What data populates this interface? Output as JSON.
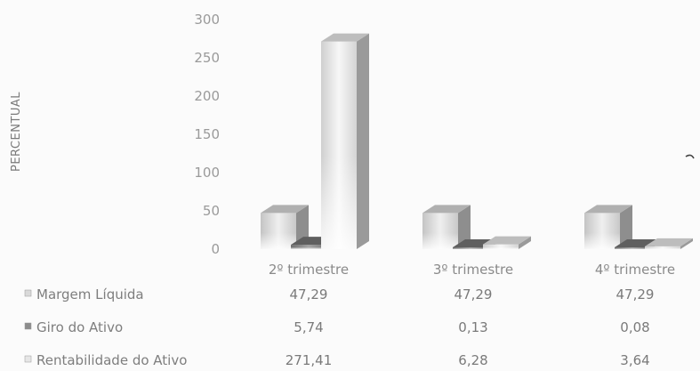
{
  "chart_data": {
    "type": "bar",
    "ylabel": "PERCENTUAL",
    "ylim": [
      0,
      300
    ],
    "yticks": [
      "300",
      "250",
      "200",
      "150",
      "100",
      "50",
      "0"
    ],
    "categories": [
      "2º trimestre",
      "3º trimestre",
      "4º trimestre"
    ],
    "series": [
      {
        "name": "Margem Líquida",
        "values": [
          47.29,
          47.29,
          47.29
        ],
        "labels": [
          "47,29",
          "47,29",
          "47,29"
        ],
        "color": "#d9d9d9"
      },
      {
        "name": "Giro do Ativo",
        "values": [
          5.74,
          0.13,
          0.08
        ],
        "labels": [
          "5,74",
          "0,13",
          "0,08"
        ],
        "color": "#8c8c8c"
      },
      {
        "name": "Rentabilidade do Ativo",
        "values": [
          271.41,
          6.28,
          3.64
        ],
        "labels": [
          "271,41",
          "6,28",
          "3,64"
        ],
        "color": "#e6e6e6"
      }
    ],
    "grid": false,
    "legend": "data-table"
  }
}
